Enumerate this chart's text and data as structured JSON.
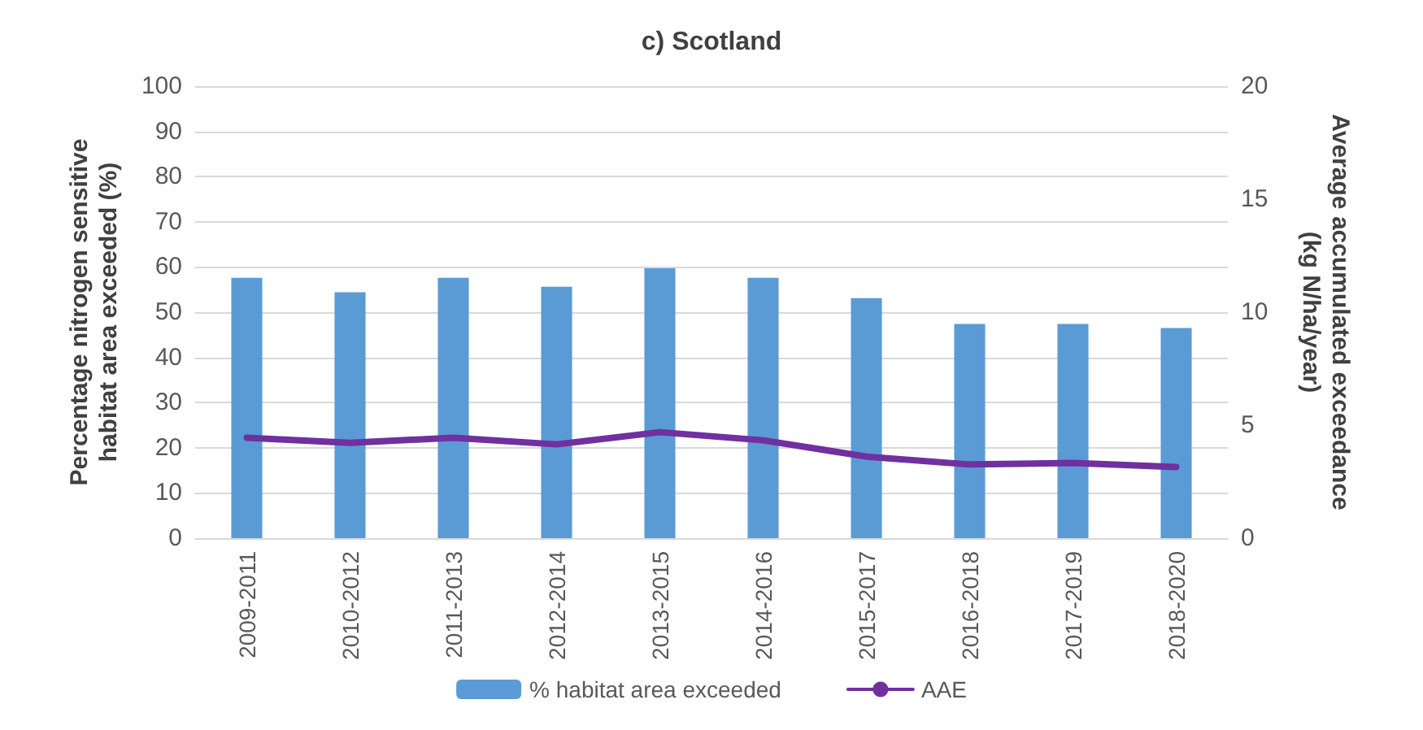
{
  "chart_data": {
    "type": "bar",
    "title": "c) Scotland",
    "ylabel": "Percentage nitrogen sensitive habitat area exceeded (%)",
    "y2label": "Average accumulated exceedance (kg N/ha/year)",
    "categories": [
      "2009-2011",
      "2010-2012",
      "2011-2013",
      "2012-2014",
      "2013-2015",
      "2014-2016",
      "2015-2017",
      "2016-2018",
      "2017-2019",
      "2018-2020"
    ],
    "series": [
      {
        "name": "% habitat area exceeded",
        "color": "#5b9bd5",
        "values": [
          57.6,
          54.4,
          57.6,
          55.6,
          59.7,
          57.6,
          53.1,
          47.4,
          47.4,
          46.5
        ]
      },
      {
        "name": "AAE",
        "type": "line",
        "axis": "y2",
        "color": "#7030a0",
        "values": [
          4.44,
          4.22,
          4.44,
          4.15,
          4.69,
          4.33,
          3.61,
          3.26,
          3.33,
          3.15
        ]
      }
    ],
    "ylim": [
      0,
      100
    ],
    "yticks": [
      0,
      10,
      20,
      30,
      40,
      50,
      60,
      70,
      80,
      90,
      100
    ],
    "y2lim": [
      0,
      20
    ],
    "y2ticks": [
      0,
      5,
      10,
      15,
      20
    ],
    "grid": "y",
    "legend": "bottom",
    "marker": "none",
    "line_style": "solid"
  }
}
